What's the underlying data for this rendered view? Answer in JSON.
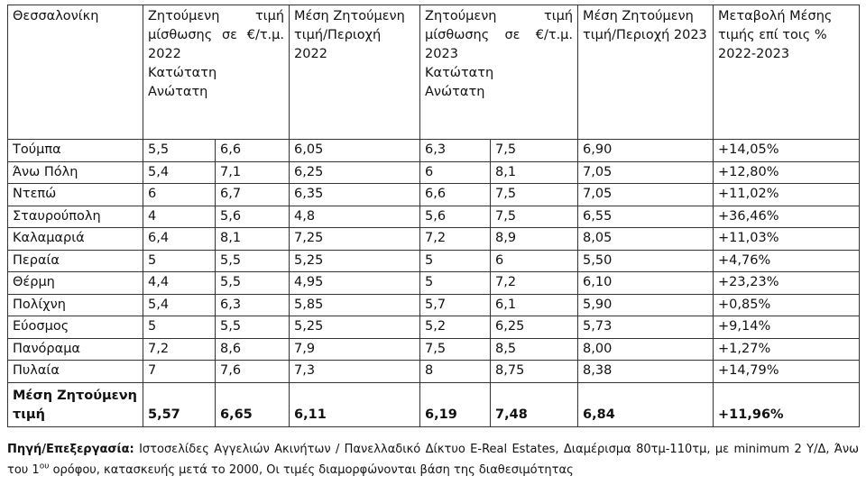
{
  "table": {
    "header": {
      "area": "Θεσσαλονίκη",
      "price2022": {
        "label": "Ζητούμενη τιμή μίσθωσης σε €/τ.μ. 2022",
        "sub": "Κατώτατη Ανώτατη"
      },
      "avg2022": "Μέση Ζητούμενη τιμή/Περιοχή 2022",
      "price2023": {
        "label": "Ζητούμενη τιμή μίσθωσης σε €/τ.μ. 2023",
        "sub": "Κατώτατη Ανώτατη"
      },
      "avg2023": "Μέση Ζητούμενη τιμή/Περιοχή 2023",
      "change": "Μεταβολή Μέσης τιμής επί τοις % 2022-2023"
    },
    "rows": [
      [
        "Τούμπα",
        "5,5",
        "6,6",
        "6,05",
        "6,3",
        "7,5",
        "6,90",
        "+14,05%"
      ],
      [
        "Άνω Πόλη",
        "5,4",
        "7,1",
        "6,25",
        "6",
        "8,1",
        "7,05",
        "+12,80%"
      ],
      [
        "Ντεπώ",
        "6",
        "6,7",
        "6,35",
        "6,6",
        "7,5",
        "7,05",
        "+11,02%"
      ],
      [
        "Σταυρούπολη",
        "4",
        "5,6",
        "4,8",
        "5,6",
        "7,5",
        "6,55",
        "+36,46%"
      ],
      [
        "Καλαμαριά",
        "6,4",
        "8,1",
        "7,25",
        "7,2",
        "8,9",
        "8,05",
        "+11,03%"
      ],
      [
        "Περαία",
        "5",
        "5,5",
        "5,25",
        "5",
        "6",
        "5,50",
        "+4,76%"
      ],
      [
        "Θέρμη",
        "4,4",
        "5,5",
        "4,95",
        "5",
        "7,2",
        "6,10",
        "+23,23%"
      ],
      [
        "Πολίχνη",
        "5,4",
        "6,3",
        "5,85",
        "5,7",
        "6,1",
        "5,90",
        "+0,85%"
      ],
      [
        "Εύοσμος",
        "5",
        "5,5",
        "5,25",
        "5,2",
        "6,25",
        "5,73",
        "+9,14%"
      ],
      [
        "Πανόραμα",
        "7,2",
        "8,6",
        "7,9",
        "7,5",
        "8,5",
        "8,00",
        "+1,27%"
      ],
      [
        "Πυλαία",
        "7",
        "7,6",
        "7,3",
        "8",
        "8,75",
        "8,38",
        "+14,79%"
      ]
    ],
    "summary": [
      "Μέση Ζητούμενη τιμή",
      "5,57",
      "6,65",
      "6,11",
      "6,19",
      "7,48",
      "6,84",
      "+11,96%"
    ]
  },
  "footer": {
    "label": "Πηγή/Επεξεργασία:",
    "text": "Ιστοσελίδες Αγγελιών Ακινήτων / Πανελλαδικό Δίκτυο E-Real Estates, Διαμέρισμα 80τμ-110τμ, με minimum 2 Υ/Δ, Άνω του 1",
    "sup": "ου",
    "text2": "ορόφου, κατασκευής μετά το 2000, Οι τιμές διαμορφώνονται βάση της διαθεσιμότητας"
  }
}
